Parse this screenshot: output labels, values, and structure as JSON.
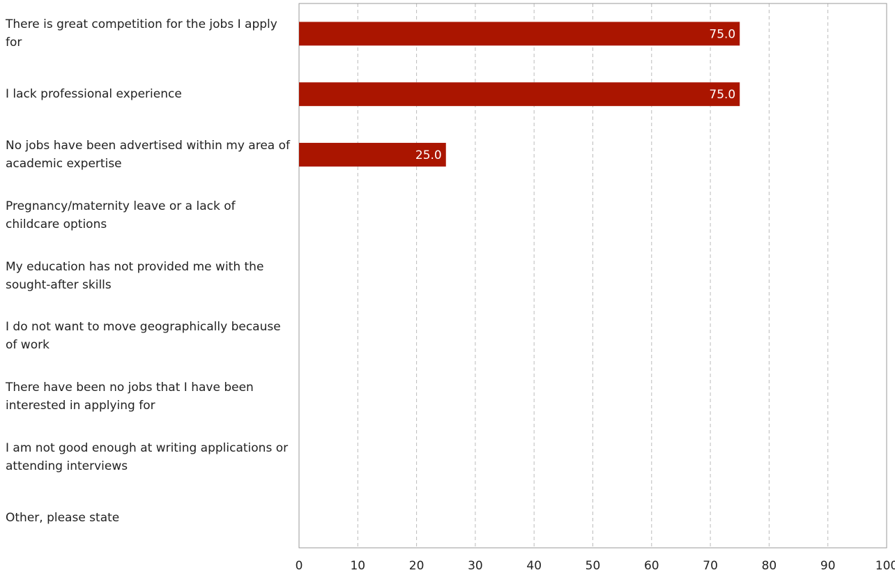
{
  "chart_data": {
    "type": "bar",
    "orientation": "horizontal",
    "categories": [
      "There is great competition for the jobs I apply for",
      "I lack professional experience",
      "No jobs have been advertised within my area of academic expertise",
      "Pregnancy/maternity leave or a lack of childcare options",
      "My education has not provided me with the sought-after skills",
      "I do not want to move geographically because of work",
      "There have been no jobs that I have been interested in applying for",
      "I am not good enough at writing applications or attending interviews",
      "Other, please state"
    ],
    "values": [
      75,
      75,
      25,
      0,
      0,
      0,
      0,
      0,
      0
    ],
    "value_labels": [
      "75.0",
      "75.0",
      "25.0",
      null,
      null,
      null,
      null,
      null,
      null
    ],
    "color": "#aa1500",
    "xlim": [
      0,
      100
    ],
    "xticks": [
      0,
      10,
      20,
      30,
      40,
      50,
      60,
      70,
      80,
      90,
      100
    ],
    "grid": true
  }
}
